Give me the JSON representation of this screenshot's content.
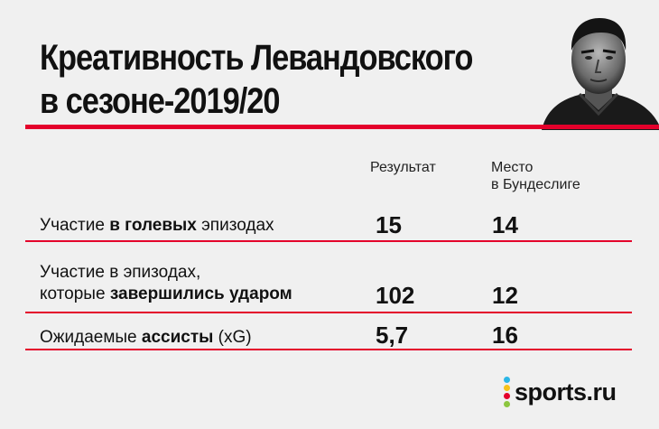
{
  "title": {
    "line1": "Креативность Левандовского",
    "line2": "в сезоне-2019/20"
  },
  "columns": {
    "result": "Результат",
    "place_line1": "Место",
    "place_line2": "в Бундеслиге"
  },
  "rows": [
    {
      "label_parts": [
        "Участие ",
        "в голевых",
        " эпизодах"
      ],
      "result": "15",
      "place": "14"
    },
    {
      "label_line1": "Участие в эпизодах,",
      "label_line2_parts": [
        "которые ",
        "завершились ударом"
      ],
      "result": "102",
      "place": "12"
    },
    {
      "label_parts": [
        "Ожидаемые ",
        "ассисты",
        " (xG)"
      ],
      "result": "5,7",
      "place": "16"
    }
  ],
  "brand": {
    "name": "sports.ru",
    "dot_colors": [
      "#2bb6e6",
      "#f6c21a",
      "#e4002b",
      "#8cc63f"
    ]
  },
  "colors": {
    "accent": "#e4002b",
    "background": "#f0f0f0",
    "text": "#111111"
  },
  "icons": {
    "portrait": "player-portrait-icon",
    "logo": "sports-ru-logo-icon"
  }
}
